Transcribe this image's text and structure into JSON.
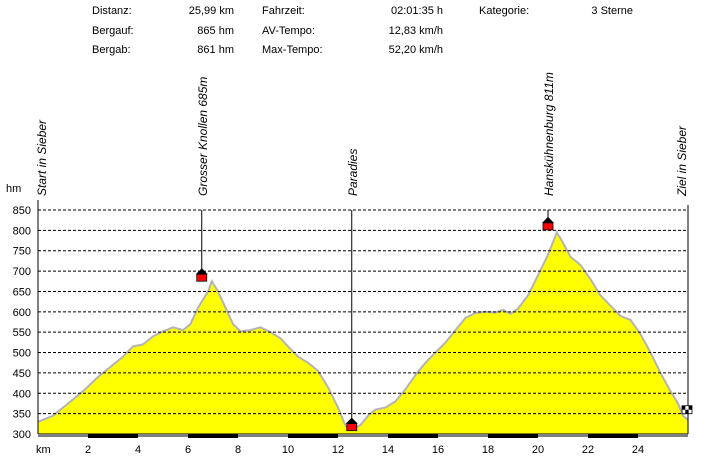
{
  "stats": {
    "distanz_label": "Distanz:",
    "distanz_value": "25,99 km",
    "bergauf_label": "Bergauf:",
    "bergauf_value": "865 hm",
    "bergab_label": "Bergab:",
    "bergab_value": "861 hm",
    "fahrzeit_label": "Fahrzeit:",
    "fahrzeit_value": "02:01:35 h",
    "avtempo_label": "AV-Tempo:",
    "avtempo_value": "12,83 km/h",
    "maxtempo_label": "Max-Tempo:",
    "maxtempo_value": "52,20 km/h",
    "kategorie_label": "Kategorie:",
    "kategorie_value": "3 Sterne"
  },
  "colors": {
    "fill": "#ffff00",
    "outline": "#b4b4b4",
    "grid": "#000000",
    "marker_red": "#ff0000",
    "marker_black": "#000000",
    "band": "#000000"
  },
  "chart_data": {
    "type": "area",
    "title": "",
    "ylabel": "hm",
    "xlabel": "km",
    "xlim": [
      0,
      26
    ],
    "ylim": [
      300,
      850
    ],
    "yticks": [
      300,
      350,
      400,
      450,
      500,
      550,
      600,
      650,
      700,
      750,
      800,
      850
    ],
    "xticks": [
      2,
      4,
      6,
      8,
      10,
      12,
      14,
      16,
      18,
      20,
      22,
      24
    ],
    "grid": true,
    "series": [
      {
        "values": [
          [
            0,
            330
          ],
          [
            0.6,
            345
          ],
          [
            1.2,
            375
          ],
          [
            1.8,
            405
          ],
          [
            2.4,
            440
          ],
          [
            3.0,
            470
          ],
          [
            3.4,
            490
          ],
          [
            3.8,
            515
          ],
          [
            4.2,
            520
          ],
          [
            4.6,
            540
          ],
          [
            5.0,
            552
          ],
          [
            5.4,
            562
          ],
          [
            5.8,
            555
          ],
          [
            6.1,
            570
          ],
          [
            6.4,
            610
          ],
          [
            6.8,
            650
          ],
          [
            6.95,
            675
          ],
          [
            7.2,
            650
          ],
          [
            7.5,
            610
          ],
          [
            7.8,
            570
          ],
          [
            8.1,
            552
          ],
          [
            8.5,
            555
          ],
          [
            8.9,
            562
          ],
          [
            9.3,
            550
          ],
          [
            9.7,
            535
          ],
          [
            10.0,
            515
          ],
          [
            10.4,
            490
          ],
          [
            10.8,
            475
          ],
          [
            11.2,
            455
          ],
          [
            11.6,
            415
          ],
          [
            12.0,
            365
          ],
          [
            12.3,
            320
          ],
          [
            12.6,
            312
          ],
          [
            12.9,
            322
          ],
          [
            13.2,
            345
          ],
          [
            13.5,
            360
          ],
          [
            13.9,
            365
          ],
          [
            14.3,
            380
          ],
          [
            14.7,
            410
          ],
          [
            15.1,
            445
          ],
          [
            15.5,
            475
          ],
          [
            15.9,
            500
          ],
          [
            16.3,
            525
          ],
          [
            16.7,
            555
          ],
          [
            17.1,
            585
          ],
          [
            17.5,
            597
          ],
          [
            17.9,
            600
          ],
          [
            18.3,
            598
          ],
          [
            18.6,
            605
          ],
          [
            18.9,
            595
          ],
          [
            19.2,
            608
          ],
          [
            19.6,
            640
          ],
          [
            20.0,
            690
          ],
          [
            20.4,
            740
          ],
          [
            20.75,
            795
          ],
          [
            21.0,
            770
          ],
          [
            21.3,
            735
          ],
          [
            21.7,
            715
          ],
          [
            22.1,
            680
          ],
          [
            22.5,
            640
          ],
          [
            22.9,
            615
          ],
          [
            23.3,
            590
          ],
          [
            23.7,
            580
          ],
          [
            24.1,
            545
          ],
          [
            24.5,
            500
          ],
          [
            24.9,
            450
          ],
          [
            25.3,
            405
          ],
          [
            25.6,
            375
          ],
          [
            25.8,
            345
          ],
          [
            26.0,
            335
          ]
        ]
      }
    ],
    "waypoints": [
      {
        "label": "Start in Sieber",
        "x": 0.0,
        "y": 330,
        "marker": "none"
      },
      {
        "label": "Grosser Knollen 685m",
        "x": 6.55,
        "y": 685,
        "marker": "summit"
      },
      {
        "label": "Paradies",
        "x": 12.55,
        "y": 318,
        "marker": "summit"
      },
      {
        "label": "Hanskühnenburg 811m",
        "x": 20.4,
        "y": 811,
        "marker": "summit"
      },
      {
        "label": "Ziel in Sieber",
        "x": 26.0,
        "y": 335,
        "marker": "finish"
      }
    ]
  }
}
